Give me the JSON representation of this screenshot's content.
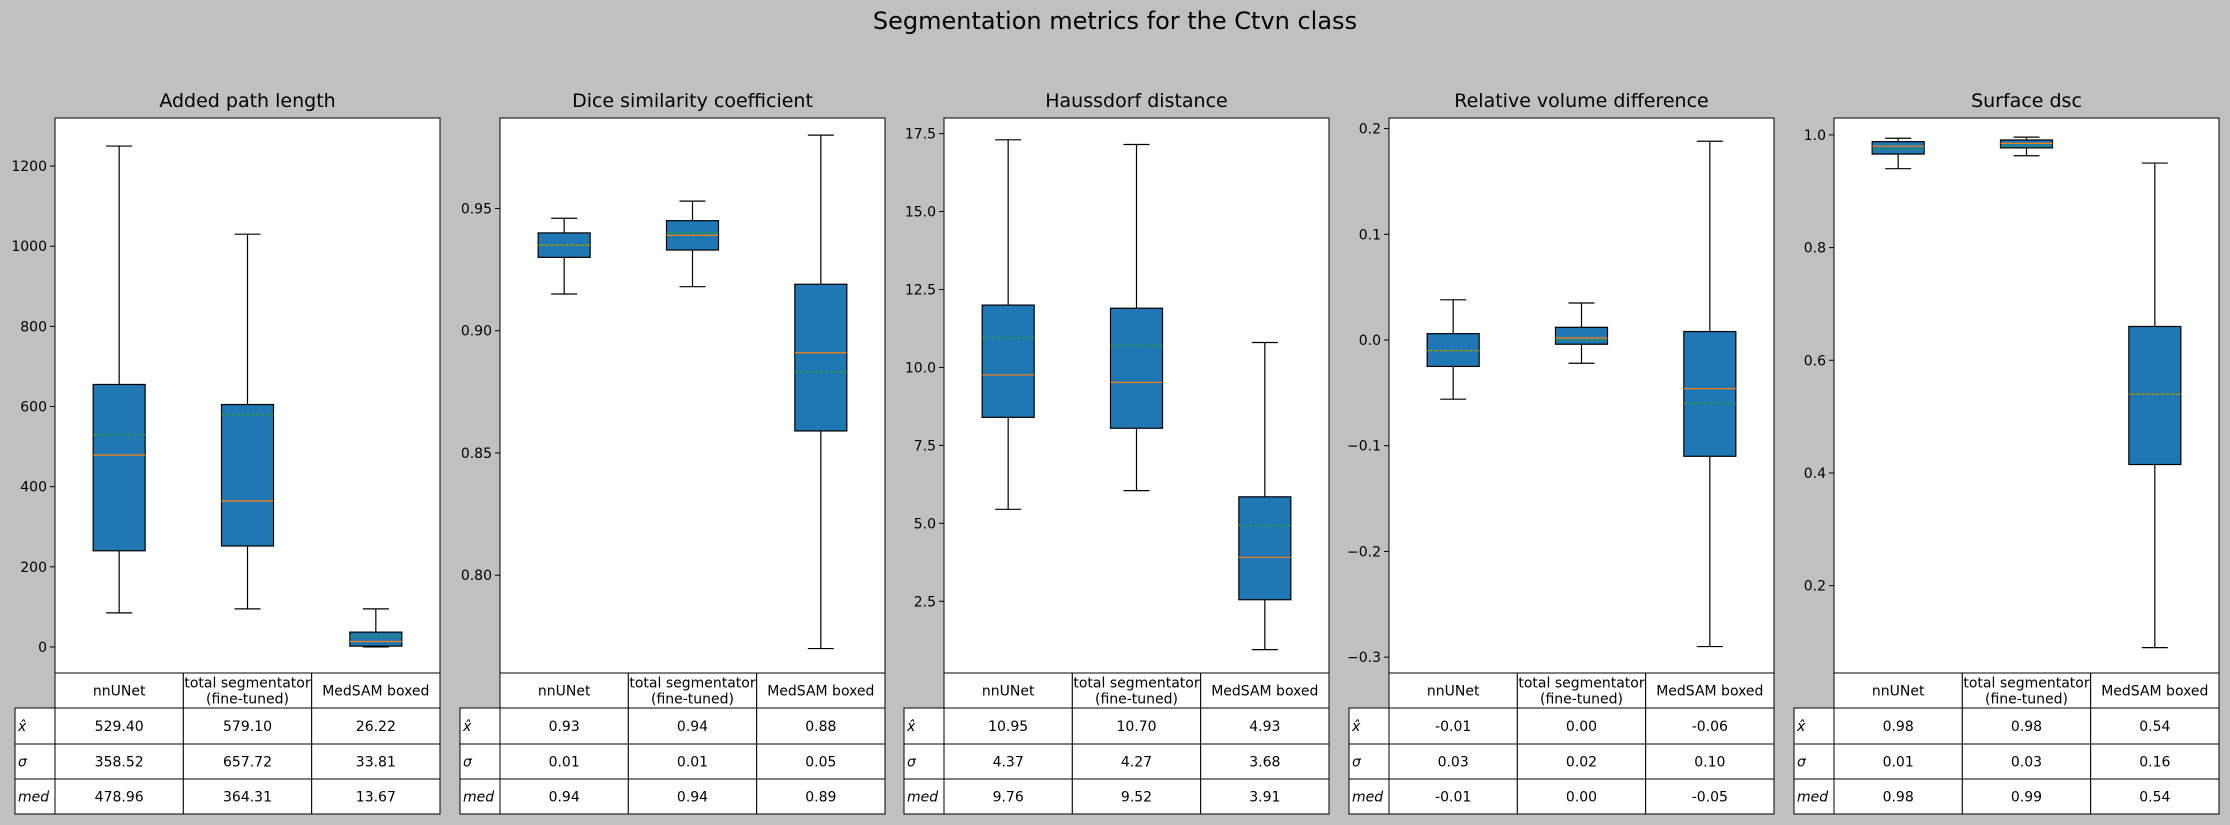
{
  "figure_title": "Segmentation metrics for the Ctvn class",
  "colors": {
    "figure_bg": "#c0c0c0",
    "axes_bg": "#ffffff",
    "box_fill": "#1f77b4",
    "median_line": "#ff7f0e",
    "mean_line": "#2ca02c",
    "edge": "#000000"
  },
  "table": {
    "row_labels": [
      "x̂",
      "σ",
      "med"
    ],
    "col_labels": [
      [
        "nnUNet"
      ],
      [
        "total segmentator",
        "(fine-tuned)"
      ],
      [
        "MedSAM boxed"
      ]
    ]
  },
  "chart_data": [
    {
      "type": "box",
      "title": "Added path length",
      "categories": [
        "nnUNet",
        "total segmentator (fine-tuned)",
        "MedSAM boxed"
      ],
      "ylim": [
        -65,
        1320
      ],
      "yticks": [
        0,
        200,
        400,
        600,
        800,
        1000,
        1200
      ],
      "ytick_labels": [
        "0",
        "200",
        "400",
        "600",
        "800",
        "1000",
        "1200"
      ],
      "boxes": [
        {
          "whislo": 85,
          "q1": 240,
          "med": 478.96,
          "mean": 529.4,
          "q3": 655,
          "whishi": 1250
        },
        {
          "whislo": 95,
          "q1": 252,
          "med": 364.31,
          "mean": 579.1,
          "q3": 605,
          "whishi": 1030
        },
        {
          "whislo": 0,
          "q1": 2,
          "med": 13.67,
          "mean": 26.22,
          "q3": 37,
          "whishi": 95
        }
      ],
      "table": [
        [
          "529.40",
          "579.10",
          "26.22"
        ],
        [
          "358.52",
          "657.72",
          "33.81"
        ],
        [
          "478.96",
          "364.31",
          "13.67"
        ]
      ]
    },
    {
      "type": "box",
      "title": "Dice similarity coefficient",
      "categories": [
        "nnUNet",
        "total segmentator (fine-tuned)",
        "MedSAM boxed"
      ],
      "ylim": [
        0.76,
        0.987
      ],
      "yticks": [
        0.8,
        0.85,
        0.9,
        0.95
      ],
      "ytick_labels": [
        "0.80",
        "0.85",
        "0.90",
        "0.95"
      ],
      "boxes": [
        {
          "whislo": 0.915,
          "q1": 0.93,
          "med": 0.935,
          "mean": 0.935,
          "q3": 0.94,
          "whishi": 0.946
        },
        {
          "whislo": 0.918,
          "q1": 0.933,
          "med": 0.939,
          "mean": 0.94,
          "q3": 0.945,
          "whishi": 0.953
        },
        {
          "whislo": 0.77,
          "q1": 0.859,
          "med": 0.891,
          "mean": 0.883,
          "q3": 0.919,
          "whishi": 0.98
        }
      ],
      "table": [
        [
          "0.93",
          "0.94",
          "0.88"
        ],
        [
          "0.01",
          "0.01",
          "0.05"
        ],
        [
          "0.94",
          "0.94",
          "0.89"
        ]
      ]
    },
    {
      "type": "box",
      "title": "Haussdorf distance",
      "categories": [
        "nnUNet",
        "total segmentator (fine-tuned)",
        "MedSAM boxed"
      ],
      "ylim": [
        0.2,
        18.0
      ],
      "yticks": [
        2.5,
        5.0,
        7.5,
        10.0,
        12.5,
        15.0,
        17.5
      ],
      "ytick_labels": [
        "2.5",
        "5.0",
        "7.5",
        "10.0",
        "12.5",
        "15.0",
        "17.5"
      ],
      "boxes": [
        {
          "whislo": 5.45,
          "q1": 8.4,
          "med": 9.76,
          "mean": 10.95,
          "q3": 12.0,
          "whishi": 17.3
        },
        {
          "whislo": 6.05,
          "q1": 8.05,
          "med": 9.52,
          "mean": 10.7,
          "q3": 11.9,
          "whishi": 17.15
        },
        {
          "whislo": 0.95,
          "q1": 2.55,
          "med": 3.91,
          "mean": 4.93,
          "q3": 5.85,
          "whishi": 10.8
        }
      ],
      "table": [
        [
          "10.95",
          "10.70",
          "4.93"
        ],
        [
          "4.37",
          "4.27",
          "3.68"
        ],
        [
          "9.76",
          "9.52",
          "3.91"
        ]
      ]
    },
    {
      "type": "box",
      "title": "Relative volume difference",
      "categories": [
        "nnUNet",
        "total segmentator (fine-tuned)",
        "MedSAM boxed"
      ],
      "ylim": [
        -0.315,
        0.21
      ],
      "yticks": [
        -0.3,
        -0.2,
        -0.1,
        0.0,
        0.1,
        0.2
      ],
      "ytick_labels": [
        "−0.3",
        "−0.2",
        "−0.1",
        "0.0",
        "0.1",
        "0.2"
      ],
      "boxes": [
        {
          "whislo": -0.056,
          "q1": -0.025,
          "med": -0.01,
          "mean": -0.01,
          "q3": 0.006,
          "whishi": 0.038
        },
        {
          "whislo": -0.022,
          "q1": -0.004,
          "med": 0.002,
          "mean": 0.0,
          "q3": 0.012,
          "whishi": 0.035
        },
        {
          "whislo": -0.29,
          "q1": -0.11,
          "med": -0.046,
          "mean": -0.06,
          "q3": 0.008,
          "whishi": 0.188
        }
      ],
      "table": [
        [
          "-0.01",
          "0.00",
          "-0.06"
        ],
        [
          "0.03",
          "0.02",
          "0.10"
        ],
        [
          "-0.01",
          "0.00",
          "-0.05"
        ]
      ]
    },
    {
      "type": "box",
      "title": "Surface dsc",
      "categories": [
        "nnUNet",
        "total segmentator (fine-tuned)",
        "MedSAM boxed"
      ],
      "ylim": [
        0.045,
        1.03
      ],
      "yticks": [
        0.2,
        0.4,
        0.6,
        0.8,
        1.0
      ],
      "ytick_labels": [
        "0.2",
        "0.4",
        "0.6",
        "0.8",
        "1.0"
      ],
      "boxes": [
        {
          "whislo": 0.94,
          "q1": 0.966,
          "med": 0.98,
          "mean": 0.975,
          "q3": 0.988,
          "whishi": 0.994
        },
        {
          "whislo": 0.963,
          "q1": 0.977,
          "med": 0.985,
          "mean": 0.98,
          "q3": 0.991,
          "whishi": 0.996
        },
        {
          "whislo": 0.09,
          "q1": 0.415,
          "med": 0.54,
          "mean": 0.54,
          "q3": 0.66,
          "whishi": 0.95
        }
      ],
      "table": [
        [
          "0.98",
          "0.98",
          "0.54"
        ],
        [
          "0.01",
          "0.03",
          "0.16"
        ],
        [
          "0.98",
          "0.99",
          "0.54"
        ]
      ]
    }
  ]
}
